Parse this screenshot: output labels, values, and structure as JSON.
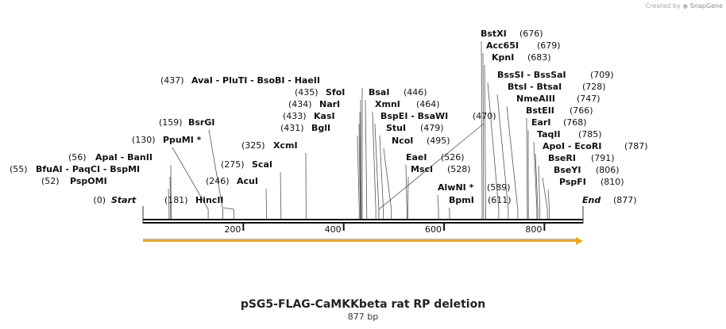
{
  "credit": {
    "prefix": "Created by",
    "brand": "SnapGene"
  },
  "title": "pSG5-FLAG-CaMKKbeta rat RP deletion",
  "subtitle": "877 bp",
  "sequence_length": 877,
  "ruler_ticks": [
    "200",
    "400",
    "600",
    "800"
  ],
  "ends": {
    "start_label": "Start",
    "start_pos": "(0)",
    "end_label": "End",
    "end_pos": "(877)"
  },
  "feature": {
    "name": "orange-feature-arrow",
    "from": 0,
    "to": 877,
    "color": "#e0a020"
  },
  "colors": {
    "line": "#555555",
    "text": "#111111",
    "backbone": "#111111",
    "feature": "#e8a820"
  },
  "sites": [
    {
      "pos_text": "(56)",
      "names": [
        "ApaI",
        "BanII"
      ],
      "site": 56
    },
    {
      "pos_text": "(55)",
      "names": [
        "BfuAI",
        "PaqCI",
        "BspMI"
      ],
      "site": 55
    },
    {
      "pos_text": "(52)",
      "names": [
        "PspOMI"
      ],
      "site": 52
    },
    {
      "pos_text": "(130)",
      "names": [
        "PpuMI *"
      ],
      "site": 130
    },
    {
      "pos_text": "(159)",
      "names": [
        "BsrGI"
      ],
      "site": 159
    },
    {
      "pos_text": "(181)",
      "names": [
        "HincII"
      ],
      "site": 181,
      "pos_left": true
    },
    {
      "pos_text": "(246)",
      "names": [
        "AcuI"
      ],
      "site": 246
    },
    {
      "pos_text": "(275)",
      "names": [
        "ScaI"
      ],
      "site": 275
    },
    {
      "pos_text": "(325)",
      "names": [
        "XcmI"
      ],
      "site": 325
    },
    {
      "pos_text": "(437)",
      "names": [
        "AvaI",
        "PluTI",
        "BsoBI",
        "HaeII"
      ],
      "site": 437
    },
    {
      "pos_text": "(435)",
      "names": [
        "SfoI"
      ],
      "site": 435
    },
    {
      "pos_text": "(434)",
      "names": [
        "NarI"
      ],
      "site": 434
    },
    {
      "pos_text": "(433)",
      "names": [
        "KasI"
      ],
      "site": 433
    },
    {
      "pos_text": "(431)",
      "names": [
        "BglI"
      ],
      "site": 431
    },
    {
      "pos_text": "(446)",
      "names": [
        "BsaI"
      ],
      "site": 446
    },
    {
      "pos_text": "(464)",
      "names": [
        "XmnI"
      ],
      "site": 464
    },
    {
      "pos_text": "",
      "names": [
        "BspEI",
        "BsaWI"
      ],
      "site": 470
    },
    {
      "pos_text": "(479)",
      "names": [
        "StuI"
      ],
      "site": 479
    },
    {
      "pos_text": "(495)",
      "names": [
        "NcoI"
      ],
      "site": 495
    },
    {
      "pos_text": "(526)",
      "names": [
        "EaeI"
      ],
      "site": 526
    },
    {
      "pos_text": "(528)",
      "names": [
        "MscI"
      ],
      "site": 528
    },
    {
      "pos_text": "(589)",
      "names": [
        "AlwNI *"
      ],
      "site": 589
    },
    {
      "pos_text": "(611)",
      "names": [
        "BpmI"
      ],
      "site": 611
    },
    {
      "pos_text": "(676)",
      "names": [
        "BstXI"
      ],
      "site": 676
    },
    {
      "pos_text": "(679)",
      "names": [
        "Acc65I"
      ],
      "site": 679
    },
    {
      "pos_text": "(683)",
      "names": [
        "KpnI"
      ],
      "site": 683
    },
    {
      "pos_text": "(470)",
      "names": [],
      "site": 470
    },
    {
      "pos_text": "(709)",
      "names": [
        "BssSI",
        "BssSaI"
      ],
      "site": 709
    },
    {
      "pos_text": "(728)",
      "names": [
        "BtsI",
        "BtsaI"
      ],
      "site": 728
    },
    {
      "pos_text": "(747)",
      "names": [
        "NmeAIII"
      ],
      "site": 747
    },
    {
      "pos_text": "(766)",
      "names": [
        "BstEII"
      ],
      "site": 766
    },
    {
      "pos_text": "(768)",
      "names": [
        "EarI"
      ],
      "site": 768
    },
    {
      "pos_text": "(785)",
      "names": [
        "TaqII"
      ],
      "site": 785
    },
    {
      "pos_text": "(787)",
      "names": [
        "ApoI",
        "EcoRI"
      ],
      "site": 787
    },
    {
      "pos_text": "(791)",
      "names": [
        "BseRI"
      ],
      "site": 791
    },
    {
      "pos_text": "(806)",
      "names": [
        "BseYI"
      ],
      "site": 806
    },
    {
      "pos_text": "(810)",
      "names": [
        "PspFI"
      ],
      "site": 810
    }
  ]
}
